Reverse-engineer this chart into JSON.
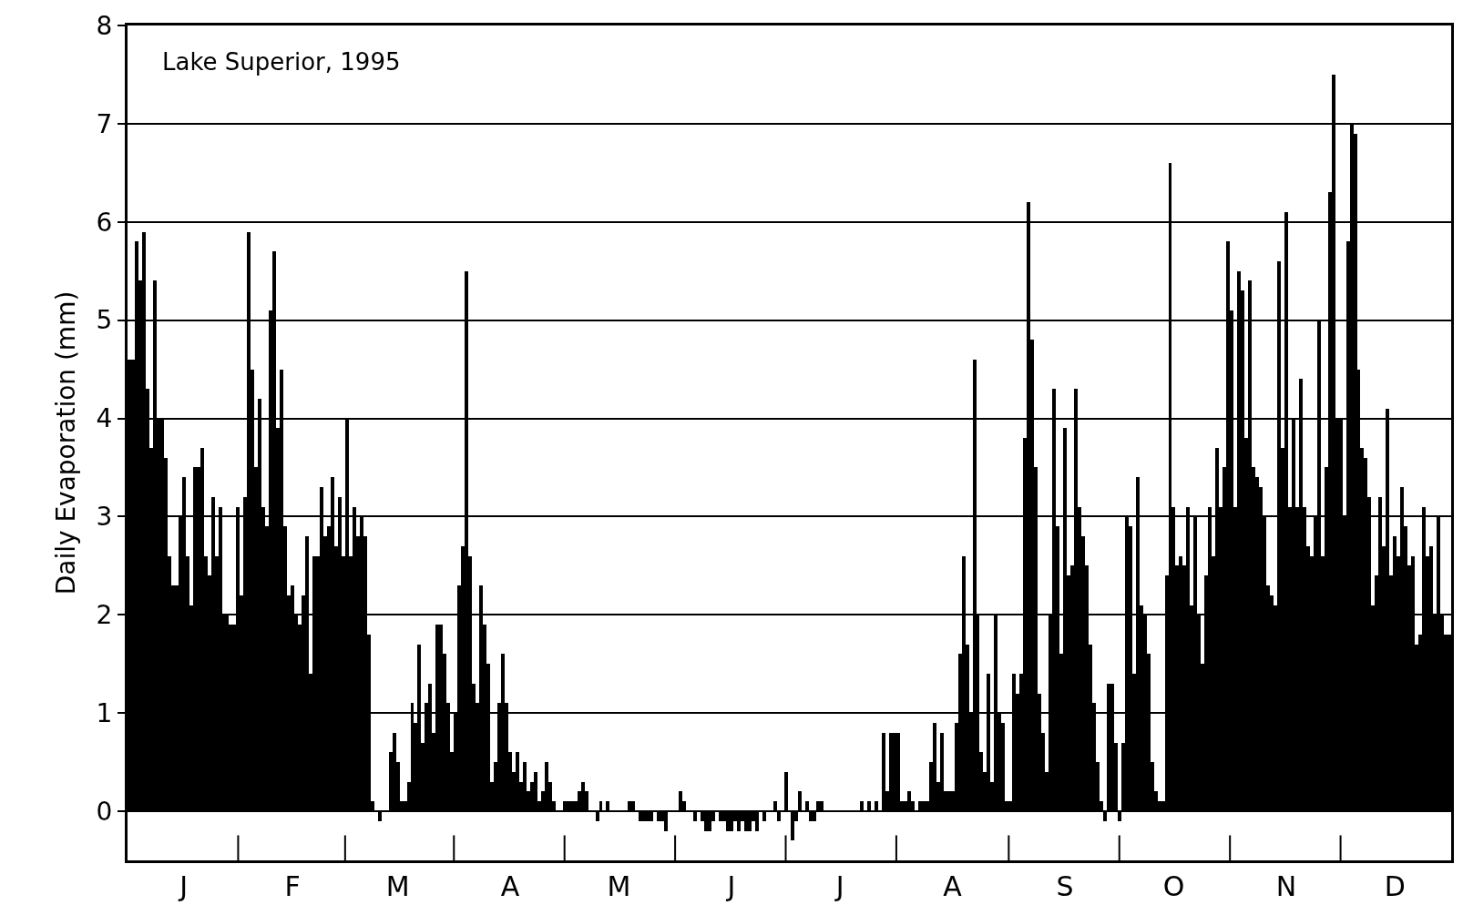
{
  "chart_data": {
    "type": "bar",
    "ylabel": "Daily Evaporation (mm)",
    "annotations": [
      "Lake Superior, 1995"
    ],
    "series": [
      {
        "color": "#000000",
        "values": [
          4.6,
          4.6,
          5.8,
          5.4,
          5.9,
          4.3,
          3.7,
          5.4,
          4.0,
          4.0,
          3.6,
          2.6,
          2.3,
          2.3,
          3.0,
          3.4,
          2.6,
          2.1,
          3.5,
          3.5,
          3.7,
          2.6,
          2.4,
          3.2,
          2.6,
          3.1,
          2.0,
          2.0,
          1.9,
          1.9,
          3.1,
          2.2,
          3.2,
          5.9,
          4.5,
          3.5,
          4.2,
          3.1,
          2.9,
          5.1,
          5.7,
          3.9,
          4.5,
          2.9,
          2.2,
          2.3,
          2.0,
          1.9,
          2.2,
          2.8,
          1.4,
          2.6,
          2.6,
          3.3,
          2.8,
          2.9,
          3.4,
          2.7,
          3.2,
          2.6,
          4.0,
          2.6,
          3.1,
          2.8,
          3.0,
          2.8,
          1.8,
          0.1,
          0.0,
          -0.1,
          0.0,
          0.0,
          0.6,
          0.8,
          0.5,
          0.1,
          0.1,
          0.3,
          1.1,
          0.9,
          1.7,
          0.7,
          1.1,
          1.3,
          0.8,
          1.9,
          1.9,
          1.6,
          1.1,
          0.6,
          1.0,
          2.3,
          2.7,
          5.5,
          2.6,
          1.3,
          1.1,
          2.3,
          1.9,
          1.5,
          0.3,
          0.5,
          1.1,
          1.6,
          1.1,
          0.6,
          0.4,
          0.6,
          0.3,
          0.5,
          0.2,
          0.3,
          0.4,
          0.1,
          0.2,
          0.5,
          0.3,
          0.1,
          0.0,
          0.0,
          0.1,
          0.1,
          0.1,
          0.1,
          0.2,
          0.3,
          0.2,
          0.0,
          0.0,
          -0.1,
          0.1,
          0.0,
          0.1,
          0.0,
          0.0,
          0.0,
          0.0,
          0.0,
          0.1,
          0.1,
          0.0,
          -0.1,
          -0.1,
          -0.1,
          -0.1,
          0.0,
          -0.1,
          -0.1,
          -0.2,
          0.0,
          0.0,
          0.0,
          0.2,
          0.1,
          0.0,
          0.0,
          -0.1,
          0.0,
          -0.1,
          -0.2,
          -0.2,
          -0.1,
          0.0,
          -0.1,
          -0.1,
          -0.2,
          -0.2,
          -0.1,
          -0.2,
          -0.1,
          -0.2,
          -0.2,
          -0.1,
          -0.2,
          0.0,
          -0.1,
          0.0,
          0.0,
          0.1,
          -0.1,
          0.0,
          0.4,
          0.0,
          -0.3,
          -0.1,
          0.2,
          0.0,
          0.1,
          -0.1,
          -0.1,
          0.1,
          0.1,
          0.0,
          0.0,
          0.0,
          0.0,
          0.0,
          0.0,
          0.0,
          0.0,
          0.0,
          0.0,
          0.1,
          0.0,
          0.1,
          0.0,
          0.1,
          0.0,
          0.8,
          0.2,
          0.8,
          0.8,
          0.8,
          0.1,
          0.1,
          0.2,
          0.1,
          0.0,
          0.1,
          0.1,
          0.1,
          0.5,
          0.9,
          0.3,
          0.8,
          0.2,
          0.2,
          0.2,
          0.9,
          1.6,
          2.6,
          1.7,
          1.0,
          4.6,
          2.0,
          0.6,
          0.4,
          1.4,
          0.3,
          2.0,
          1.0,
          0.9,
          0.1,
          0.1,
          1.4,
          1.2,
          1.4,
          3.8,
          6.2,
          4.8,
          3.5,
          1.2,
          0.8,
          0.4,
          2.0,
          4.3,
          2.9,
          1.6,
          3.9,
          2.4,
          2.5,
          4.3,
          3.1,
          2.8,
          2.5,
          1.7,
          1.1,
          0.5,
          0.1,
          -0.1,
          1.3,
          1.3,
          0.7,
          -0.1,
          0.7,
          3.0,
          2.9,
          1.4,
          3.4,
          2.1,
          2.0,
          1.6,
          0.5,
          0.2,
          0.1,
          0.1,
          2.4,
          6.6,
          3.1,
          2.5,
          2.6,
          2.5,
          3.1,
          2.1,
          3.0,
          2.0,
          1.5,
          2.4,
          3.1,
          2.6,
          3.7,
          3.1,
          3.5,
          5.8,
          5.1,
          3.1,
          5.5,
          5.3,
          3.8,
          5.4,
          3.5,
          3.4,
          3.3,
          3.0,
          2.3,
          2.2,
          2.1,
          5.6,
          3.7,
          6.1,
          3.1,
          4.0,
          3.1,
          4.4,
          3.1,
          2.7,
          2.6,
          3.0,
          5.0,
          2.6,
          3.5,
          6.3,
          7.5,
          4.0,
          4.0,
          3.0,
          5.8,
          7.0,
          6.9,
          4.5,
          3.7,
          3.6,
          3.2,
          2.1,
          2.4,
          3.2,
          2.7,
          4.1,
          2.4,
          2.8,
          2.6,
          3.3,
          2.9,
          2.5,
          2.6,
          1.7,
          1.8,
          3.1,
          2.6,
          2.7,
          2.0,
          3.0,
          2.0,
          1.8,
          1.8
        ]
      }
    ],
    "categories": [
      null,
      null,
      null,
      null,
      null,
      null,
      null,
      null,
      null,
      null,
      null,
      null,
      null,
      null,
      null,
      "J",
      null,
      null,
      null,
      null,
      null,
      null,
      null,
      null,
      null,
      null,
      null,
      null,
      null,
      null,
      null,
      null,
      null,
      null,
      null,
      null,
      null,
      null,
      null,
      null,
      null,
      null,
      null,
      null,
      null,
      "F",
      null,
      null,
      null,
      null,
      null,
      null,
      null,
      null,
      null,
      null,
      null,
      null,
      null,
      null,
      null,
      null,
      null,
      null,
      null,
      null,
      null,
      null,
      null,
      null,
      null,
      null,
      null,
      null,
      "M",
      null,
      null,
      null,
      null,
      null,
      null,
      null,
      null,
      null,
      null,
      null,
      null,
      null,
      null,
      null,
      null,
      null,
      null,
      null,
      null,
      null,
      null,
      null,
      null,
      null,
      null,
      null,
      null,
      null,
      null,
      "A",
      null,
      null,
      null,
      null,
      null,
      null,
      null,
      null,
      null,
      null,
      null,
      null,
      null,
      null,
      null,
      null,
      null,
      null,
      null,
      null,
      null,
      null,
      null,
      null,
      null,
      null,
      null,
      null,
      null,
      "M",
      null,
      null,
      null,
      null,
      null,
      null,
      null,
      null,
      null,
      null,
      null,
      null,
      null,
      null,
      null,
      null,
      null,
      null,
      null,
      null,
      null,
      null,
      null,
      null,
      null,
      null,
      null,
      null,
      null,
      null,
      "J",
      null,
      null,
      null,
      null,
      null,
      null,
      null,
      null,
      null,
      null,
      null,
      null,
      null,
      null,
      null,
      null,
      null,
      null,
      null,
      null,
      null,
      null,
      null,
      null,
      null,
      null,
      null,
      null,
      null,
      "J",
      null,
      null,
      null,
      null,
      null,
      null,
      null,
      null,
      null,
      null,
      null,
      null,
      null,
      null,
      null,
      null,
      null,
      null,
      null,
      null,
      null,
      null,
      null,
      null,
      null,
      null,
      null,
      null,
      null,
      null,
      "A",
      null,
      null,
      null,
      null,
      null,
      null,
      null,
      null,
      null,
      null,
      null,
      null,
      null,
      null,
      null,
      null,
      null,
      null,
      null,
      null,
      null,
      null,
      null,
      null,
      null,
      null,
      null,
      null,
      null,
      null,
      "S",
      null,
      null,
      null,
      null,
      null,
      null,
      null,
      null,
      null,
      null,
      null,
      null,
      null,
      null,
      null,
      null,
      null,
      null,
      null,
      null,
      null,
      null,
      null,
      null,
      null,
      null,
      null,
      null,
      null,
      "O",
      null,
      null,
      null,
      null,
      null,
      null,
      null,
      null,
      null,
      null,
      null,
      null,
      null,
      null,
      null,
      null,
      null,
      null,
      null,
      null,
      null,
      null,
      null,
      null,
      null,
      null,
      null,
      null,
      null,
      null,
      "N",
      null,
      null,
      null,
      null,
      null,
      null,
      null,
      null,
      null,
      null,
      null,
      null,
      null,
      null,
      null,
      null,
      null,
      null,
      null,
      null,
      null,
      null,
      null,
      null,
      null,
      null,
      null,
      null,
      null,
      "D",
      null,
      null,
      null,
      null,
      null,
      null,
      null,
      null,
      null,
      null,
      null,
      null,
      null,
      null,
      null
    ],
    "ylim": [
      -0.5,
      8
    ],
    "yticks": [
      0,
      1,
      2,
      3,
      4,
      5,
      6,
      7,
      8
    ],
    "grid": "y"
  }
}
